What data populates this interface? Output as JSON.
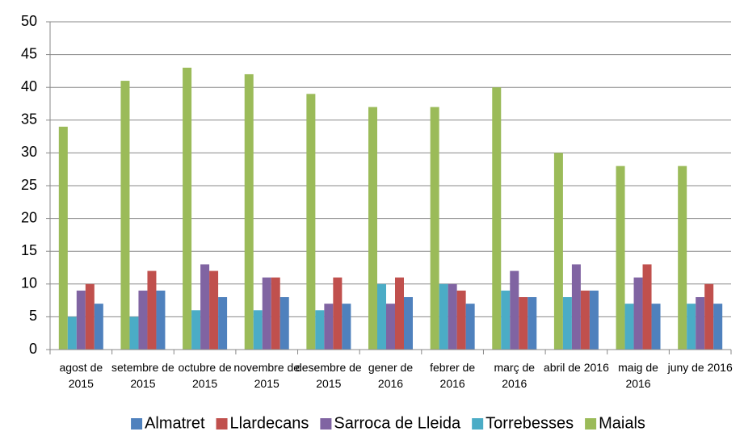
{
  "chart_data": {
    "type": "bar",
    "categories": [
      "agost de 2015",
      "setembre de 2015",
      "octubre de 2015",
      "novembre de 2015",
      "desembre de 2015",
      "gener de 2016",
      "febrer de 2016",
      "març de 2016",
      "abril de 2016",
      "maig de 2016",
      "juny de 2016"
    ],
    "series": [
      {
        "name": "Maials",
        "color": "#9bbb59",
        "values": [
          34,
          41,
          43,
          42,
          39,
          37,
          37,
          40,
          30,
          28,
          28
        ]
      },
      {
        "name": "Torrebesses",
        "color": "#4bacc6",
        "values": [
          5,
          5,
          6,
          6,
          6,
          10,
          10,
          9,
          8,
          7,
          7
        ]
      },
      {
        "name": "Sarroca de Lleida",
        "color": "#8064a2",
        "values": [
          9,
          9,
          13,
          11,
          7,
          7,
          10,
          12,
          13,
          11,
          8
        ]
      },
      {
        "name": "Llardecans",
        "color": "#c0504d",
        "values": [
          10,
          12,
          12,
          11,
          11,
          11,
          9,
          8,
          9,
          13,
          10
        ]
      },
      {
        "name": "Almatret",
        "color": "#4f81bd",
        "values": [
          7,
          9,
          8,
          8,
          7,
          8,
          7,
          8,
          9,
          7,
          7
        ]
      }
    ],
    "ylim": [
      0,
      50
    ],
    "yticks": [
      0,
      5,
      10,
      15,
      20,
      25,
      30,
      35,
      40,
      45,
      50
    ],
    "grid": true,
    "legend": "bottom"
  }
}
